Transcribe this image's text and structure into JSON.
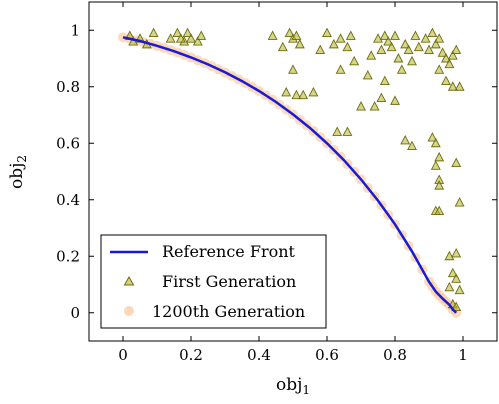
{
  "chart_data": {
    "type": "scatter",
    "title": "",
    "xlabel": "obj",
    "xlabel_sub": "1",
    "ylabel": "obj",
    "ylabel_sub": "2",
    "xlim": [
      -0.1,
      1.1
    ],
    "ylim": [
      -0.1,
      1.1
    ],
    "x_ticks": [
      0,
      0.2,
      0.4,
      0.6,
      0.8,
      1
    ],
    "x_tick_labels": [
      "0",
      "0.2",
      "0.4",
      "0.6",
      "0.8",
      "1"
    ],
    "y_ticks": [
      0,
      0.2,
      0.4,
      0.6,
      0.8,
      1
    ],
    "y_tick_labels": [
      "0",
      "0.2",
      "0.4",
      "0.6",
      "0.8",
      "1"
    ],
    "grid": false,
    "legend_position": "bottom-left",
    "series": [
      {
        "name": "Reference Front",
        "style": "line",
        "color": "#1a1ad6",
        "x": [
          0.0,
          0.05,
          0.1,
          0.15,
          0.2,
          0.25,
          0.3,
          0.35,
          0.4,
          0.45,
          0.5,
          0.55,
          0.6,
          0.65,
          0.7,
          0.75,
          0.8,
          0.85,
          0.9,
          0.92,
          0.94,
          0.96,
          0.97,
          0.98
        ],
        "y": [
          0.975,
          0.962,
          0.945,
          0.926,
          0.904,
          0.879,
          0.851,
          0.82,
          0.785,
          0.746,
          0.702,
          0.654,
          0.6,
          0.54,
          0.472,
          0.397,
          0.313,
          0.217,
          0.11,
          0.075,
          0.05,
          0.028,
          0.012,
          0.0
        ]
      },
      {
        "name": "First Generation",
        "style": "marker-triangle",
        "color": "#b5b52a",
        "stroke": "#6b6b10",
        "points": [
          [
            0.02,
            0.98
          ],
          [
            0.03,
            0.96
          ],
          [
            0.05,
            0.97
          ],
          [
            0.07,
            0.95
          ],
          [
            0.09,
            0.99
          ],
          [
            0.14,
            0.97
          ],
          [
            0.16,
            0.99
          ],
          [
            0.18,
            0.96
          ],
          [
            0.19,
            0.99
          ],
          [
            0.2,
            0.97
          ],
          [
            0.22,
            0.96
          ],
          [
            0.23,
            0.98
          ],
          [
            0.17,
            0.97
          ],
          [
            0.44,
            0.98
          ],
          [
            0.47,
            0.94
          ],
          [
            0.49,
            0.99
          ],
          [
            0.5,
            0.97
          ],
          [
            0.51,
            0.98
          ],
          [
            0.5,
            0.86
          ],
          [
            0.48,
            0.78
          ],
          [
            0.51,
            0.77
          ],
          [
            0.53,
            0.77
          ],
          [
            0.56,
            0.78
          ],
          [
            0.52,
            0.95
          ],
          [
            0.58,
            0.93
          ],
          [
            0.6,
            0.99
          ],
          [
            0.62,
            0.95
          ],
          [
            0.64,
            0.97
          ],
          [
            0.66,
            0.94
          ],
          [
            0.67,
            0.98
          ],
          [
            0.63,
            0.64
          ],
          [
            0.66,
            0.64
          ],
          [
            0.64,
            0.86
          ],
          [
            0.68,
            0.89
          ],
          [
            0.7,
            0.73
          ],
          [
            0.72,
            0.84
          ],
          [
            0.73,
            0.91
          ],
          [
            0.74,
            0.73
          ],
          [
            0.75,
            0.97
          ],
          [
            0.76,
            0.93
          ],
          [
            0.77,
            0.98
          ],
          [
            0.78,
            0.96
          ],
          [
            0.79,
            0.94
          ],
          [
            0.8,
            0.98
          ],
          [
            0.81,
            0.9
          ],
          [
            0.82,
            0.86
          ],
          [
            0.83,
            0.95
          ],
          [
            0.84,
            0.93
          ],
          [
            0.85,
            0.89
          ],
          [
            0.86,
            0.98
          ],
          [
            0.76,
            0.76
          ],
          [
            0.77,
            0.82
          ],
          [
            0.8,
            0.75
          ],
          [
            0.83,
            0.61
          ],
          [
            0.85,
            0.59
          ],
          [
            0.87,
            0.94
          ],
          [
            0.89,
            0.97
          ],
          [
            0.9,
            0.93
          ],
          [
            0.91,
            0.99
          ],
          [
            0.92,
            0.95
          ],
          [
            0.93,
            0.97
          ],
          [
            0.94,
            0.92
          ],
          [
            0.95,
            0.9
          ],
          [
            0.96,
            0.88
          ],
          [
            0.97,
            0.91
          ],
          [
            0.98,
            0.93
          ],
          [
            0.99,
            0.8
          ],
          [
            0.97,
            0.8
          ],
          [
            0.93,
            0.86
          ],
          [
            0.91,
            0.62
          ],
          [
            0.92,
            0.6
          ],
          [
            0.93,
            0.55
          ],
          [
            0.92,
            0.52
          ],
          [
            0.93,
            0.47
          ],
          [
            0.93,
            0.45
          ],
          [
            0.92,
            0.36
          ],
          [
            0.93,
            0.36
          ],
          [
            0.96,
            0.2
          ],
          [
            0.98,
            0.21
          ],
          [
            0.98,
            0.53
          ],
          [
            0.99,
            0.39
          ],
          [
            0.97,
            0.14
          ],
          [
            0.98,
            0.12
          ],
          [
            0.96,
            0.09
          ],
          [
            0.97,
            0.03
          ],
          [
            0.98,
            0.02
          ],
          [
            0.99,
            0.08
          ],
          [
            0.95,
            0.82
          ]
        ]
      },
      {
        "name": "1200th Generation",
        "style": "marker-circle",
        "color": "#f9c89a",
        "points_on_front": [
          0.0,
          0.02,
          0.04,
          0.06,
          0.08,
          0.1,
          0.12,
          0.14,
          0.16,
          0.18,
          0.2,
          0.22,
          0.24,
          0.26,
          0.28,
          0.3,
          0.32,
          0.34,
          0.36,
          0.38,
          0.4,
          0.42,
          0.44,
          0.46,
          0.48,
          0.5,
          0.52,
          0.54,
          0.56,
          0.58,
          0.6,
          0.62,
          0.64,
          0.66,
          0.68,
          0.7,
          0.72,
          0.74,
          0.76,
          0.78,
          0.8,
          0.82,
          0.84,
          0.86,
          0.88,
          0.9,
          0.91,
          0.92,
          0.93,
          0.94,
          0.95,
          0.96,
          0.97,
          0.98
        ]
      }
    ]
  }
}
